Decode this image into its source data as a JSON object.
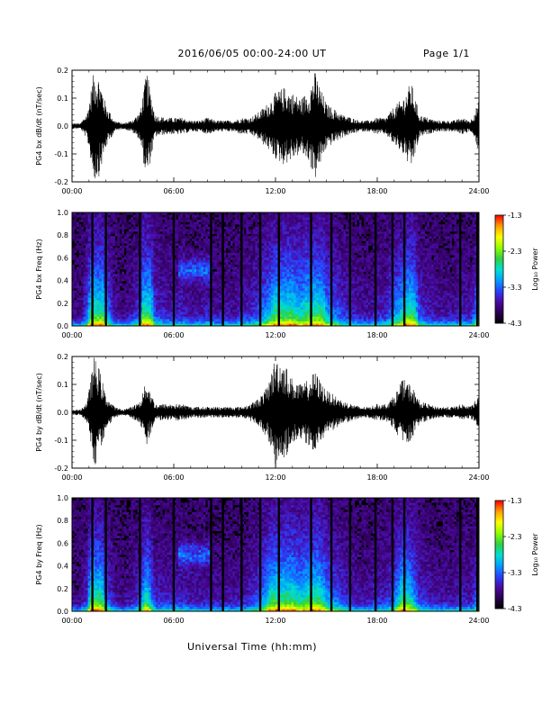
{
  "header": {
    "title": "2016/06/05  00:00-24:00 UT",
    "page": "Page 1/1"
  },
  "footer": {
    "xlabel": "Universal Time (hh:mm)"
  },
  "colors": {
    "background": "#ffffff",
    "trace": "#000000",
    "colormap": [
      "#000000",
      "#2a0050",
      "#4b0aa0",
      "#2a40ff",
      "#00a0ff",
      "#00e0d0",
      "#30d040",
      "#90ff00",
      "#ffff00",
      "#ffa000",
      "#ff0000"
    ]
  },
  "colorbar": {
    "label": "Log₁₀ Power",
    "ticks": [
      -4.3,
      -3.3,
      -2.3,
      -1.3
    ],
    "tick_labels": [
      "-4.3",
      "-3.3",
      "-2.3",
      "-1.3"
    ]
  },
  "chart_data": [
    {
      "type": "line",
      "name": "bx-waveform",
      "ylabel": "PG4 bx dB/dt (nT/sec)",
      "xlim": [
        "00:00",
        "24:00"
      ],
      "ylim": [
        -0.2,
        0.2
      ],
      "xticks": [
        "00:00",
        "06:00",
        "12:00",
        "18:00",
        "24:00"
      ],
      "yticks": [
        "-0.2",
        "-0.1",
        "0.0",
        "0.1",
        "0.2"
      ],
      "x_hours": [
        0,
        0.5,
        0.9,
        1.3,
        1.6,
        2.0,
        2.5,
        3.0,
        3.5,
        4.0,
        4.4,
        4.9,
        5.5,
        6.0,
        6.5,
        7.0,
        7.5,
        8.0,
        8.5,
        9.0,
        9.5,
        10.0,
        10.5,
        11.0,
        11.5,
        12.0,
        12.5,
        13.0,
        13.5,
        14.0,
        14.3,
        15.0,
        15.5,
        16.0,
        16.5,
        17.0,
        17.5,
        18.0,
        18.5,
        19.0,
        19.5,
        20.0,
        20.5,
        21.0,
        21.5,
        22.0,
        22.5,
        23.0,
        23.5,
        24.0
      ],
      "amplitude": [
        0.01,
        0.01,
        0.05,
        0.2,
        0.18,
        0.08,
        0.02,
        0.01,
        0.02,
        0.05,
        0.2,
        0.04,
        0.03,
        0.03,
        0.03,
        0.02,
        0.02,
        0.03,
        0.02,
        0.02,
        0.02,
        0.03,
        0.03,
        0.05,
        0.08,
        0.12,
        0.14,
        0.12,
        0.1,
        0.13,
        0.2,
        0.08,
        0.06,
        0.04,
        0.03,
        0.02,
        0.02,
        0.03,
        0.03,
        0.07,
        0.1,
        0.16,
        0.04,
        0.03,
        0.02,
        0.02,
        0.02,
        0.03,
        0.02,
        0.09
      ]
    },
    {
      "type": "heatmap",
      "name": "bx-spectrogram",
      "ylabel": "PG4 bx Freq (Hz)",
      "xlim": [
        "00:00",
        "24:00"
      ],
      "ylim": [
        0.0,
        1.0
      ],
      "xticks": [
        "00:00",
        "06:00",
        "12:00",
        "18:00",
        "24:00"
      ],
      "yticks": [
        "0.0",
        "0.2",
        "0.4",
        "0.6",
        "0.8",
        "1.0"
      ],
      "clim": [
        -4.3,
        -1.3
      ],
      "gap_hours": [
        1.2,
        2.0,
        4.0,
        6.0,
        8.2,
        8.9,
        10.0,
        11.1,
        12.2,
        14.1,
        15.3,
        16.4,
        17.9,
        18.9,
        19.6,
        22.9,
        23.9
      ]
    },
    {
      "type": "line",
      "name": "by-waveform",
      "ylabel": "PG4 by dB/dt (nT/sec)",
      "xlim": [
        "00:00",
        "24:00"
      ],
      "ylim": [
        -0.2,
        0.2
      ],
      "xticks": [
        "00:00",
        "06:00",
        "12:00",
        "18:00",
        "24:00"
      ],
      "yticks": [
        "-0.2",
        "-0.1",
        "0.0",
        "0.1",
        "0.2"
      ],
      "x_hours": [
        0,
        0.5,
        0.9,
        1.3,
        1.6,
        2.0,
        2.5,
        3.0,
        3.5,
        4.0,
        4.4,
        4.9,
        5.5,
        6.0,
        6.5,
        7.0,
        7.5,
        8.0,
        8.5,
        9.0,
        9.5,
        10.0,
        10.5,
        11.0,
        11.5,
        12.0,
        12.5,
        13.0,
        13.5,
        14.0,
        14.3,
        15.0,
        15.5,
        16.0,
        16.5,
        17.0,
        17.5,
        18.0,
        18.5,
        19.0,
        19.5,
        20.0,
        20.5,
        21.0,
        21.5,
        22.0,
        22.5,
        23.0,
        23.5,
        24.0
      ],
      "amplitude": [
        0.01,
        0.01,
        0.04,
        0.2,
        0.16,
        0.06,
        0.02,
        0.01,
        0.02,
        0.04,
        0.12,
        0.03,
        0.03,
        0.03,
        0.03,
        0.02,
        0.02,
        0.02,
        0.02,
        0.02,
        0.02,
        0.02,
        0.03,
        0.05,
        0.09,
        0.2,
        0.18,
        0.12,
        0.1,
        0.12,
        0.15,
        0.08,
        0.06,
        0.04,
        0.03,
        0.02,
        0.02,
        0.03,
        0.03,
        0.06,
        0.12,
        0.1,
        0.04,
        0.03,
        0.02,
        0.02,
        0.02,
        0.03,
        0.02,
        0.06
      ]
    },
    {
      "type": "heatmap",
      "name": "by-spectrogram",
      "ylabel": "PG4 by Freq (Hz)",
      "xlim": [
        "00:00",
        "24:00"
      ],
      "ylim": [
        0.0,
        1.0
      ],
      "xticks": [
        "00:00",
        "06:00",
        "12:00",
        "18:00",
        "24:00"
      ],
      "yticks": [
        "0.0",
        "0.2",
        "0.4",
        "0.6",
        "0.8",
        "1.0"
      ],
      "clim": [
        -4.3,
        -1.3
      ],
      "gap_hours": [
        1.2,
        2.0,
        4.0,
        6.0,
        8.2,
        8.9,
        10.0,
        11.1,
        12.2,
        14.1,
        15.3,
        16.4,
        17.9,
        18.9,
        19.6,
        22.9,
        23.9
      ]
    }
  ]
}
